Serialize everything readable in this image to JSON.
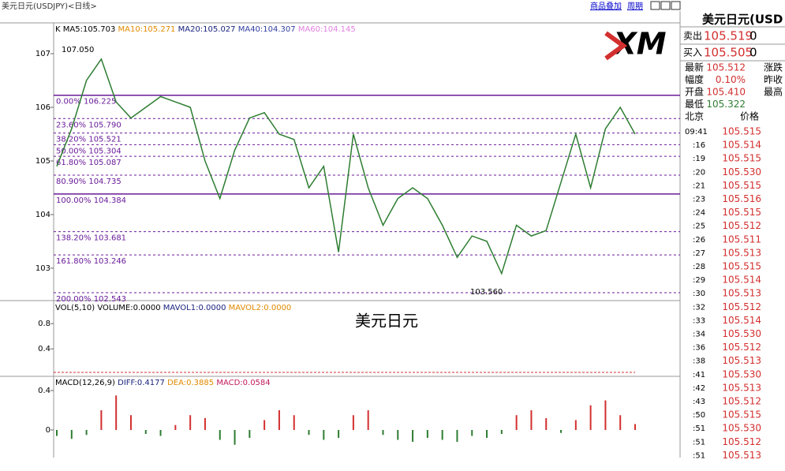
{
  "header": {
    "title": "美元日元(USDJPY)<日线>",
    "links": [
      "商品叠加",
      "周期"
    ]
  },
  "price_chart": {
    "indicator": "K",
    "ma_labels": [
      {
        "text": "MA5:105.703",
        "color": "#000000"
      },
      {
        "text": "MA10:105.271",
        "color": "#e08a00"
      },
      {
        "text": "MA20:105.027",
        "color": "#1a237e"
      },
      {
        "text": "MA40:104.307",
        "color": "#303f9f"
      },
      {
        "text": "MA60:104.145",
        "color": "#e080e0"
      }
    ],
    "ylim": [
      102.41,
      107.56
    ],
    "yticks": [
      103,
      104,
      105,
      106,
      107
    ],
    "high_label": "107.050",
    "low_label": "103.560",
    "fib_levels": [
      {
        "ratio": "0.00%",
        "price": 106.225
      },
      {
        "ratio": "23.60%",
        "price": {
          "value": 105.79,
          "label": "105.790"
        }
      },
      {
        "ratio": "38.20%",
        "price": 105.521
      },
      {
        "ratio": "50.00%",
        "price": 105.304
      },
      {
        "ratio": "61.80%",
        "price": 105.087
      },
      {
        "ratio": "80.90%",
        "price": 104.735
      },
      {
        "ratio": "100.00%",
        "price": 104.384
      },
      {
        "ratio": "138.20%",
        "price": 103.681
      },
      {
        "ratio": "161.80%",
        "price": 103.246
      },
      {
        "ratio": "200.00%",
        "price": 102.543
      }
    ],
    "closes": [
      104.9,
      105.6,
      106.5,
      106.9,
      106.1,
      105.8,
      106.0,
      106.2,
      106.1,
      106.0,
      105.0,
      104.3,
      105.2,
      105.8,
      105.9,
      105.5,
      105.4,
      104.5,
      104.9,
      103.3,
      105.5,
      104.5,
      103.8,
      104.3,
      104.5,
      104.3,
      103.8,
      103.2,
      103.6,
      103.5,
      102.9,
      103.8,
      103.6,
      103.7,
      104.6,
      105.5,
      104.5,
      105.6,
      106.0,
      105.5
    ],
    "close_color": "#2e7d32"
  },
  "watermark": "美元日元",
  "volume_chart": {
    "label": "VOL(5,10) VOLUME:0.0000",
    "mavol1": "MAVOL1:0.0000",
    "mavol2": "MAVOL2:0.0000",
    "ylim": [
      -0.01,
      1.14
    ],
    "yticks": [
      0.4,
      0.8
    ]
  },
  "macd_chart": {
    "label": "MACD(12,26,9)",
    "diff": "DIFF:0.4177",
    "dea": "DEA:0.3885",
    "macd": "MACD:0.0584",
    "ylim": [
      -0.28,
      0.536
    ],
    "yticks": [
      0,
      0.4
    ],
    "histogram": [
      -0.06,
      -0.09,
      -0.05,
      0.2,
      0.35,
      0.15,
      -0.04,
      -0.06,
      0.05,
      0.15,
      0.12,
      -0.1,
      -0.15,
      -0.08,
      0.1,
      0.2,
      0.15,
      -0.05,
      -0.1,
      -0.08,
      0.15,
      0.2,
      -0.05,
      -0.1,
      -0.12,
      -0.08,
      -0.1,
      -0.12,
      -0.06,
      -0.08,
      -0.04,
      0.15,
      0.2,
      0.12,
      -0.03,
      0.1,
      0.25,
      0.3,
      0.15,
      0.06
    ]
  },
  "quote_panel": {
    "title": "美元日元(USD",
    "sell": {
      "label": "卖出",
      "price": "105.519",
      "change": "0"
    },
    "buy": {
      "label": "买入",
      "price": "105.505",
      "change": "0"
    },
    "stats": [
      [
        "最新",
        "105.512",
        "涨跌"
      ],
      [
        "幅度",
        "0.10%",
        "昨收"
      ],
      [
        "开盘",
        "105.410",
        "最高"
      ],
      [
        "最低",
        "105.322"
      ]
    ],
    "ticks_header": [
      "北京",
      "价格"
    ],
    "ticks": [
      [
        "09:41",
        "105.515"
      ],
      [
        ":16",
        "105.514"
      ],
      [
        ":19",
        "105.515"
      ],
      [
        ":20",
        "105.530"
      ],
      [
        ":21",
        "105.515"
      ],
      [
        ":23",
        "105.516"
      ],
      [
        ":24",
        "105.515"
      ],
      [
        ":25",
        "105.512"
      ],
      [
        ":26",
        "105.511"
      ],
      [
        ":27",
        "105.513"
      ],
      [
        ":28",
        "105.515"
      ],
      [
        ":29",
        "105.514"
      ],
      [
        ":30",
        "105.513"
      ],
      [
        ":32",
        "105.512"
      ],
      [
        ":33",
        "105.514"
      ],
      [
        ":34",
        "105.530"
      ],
      [
        ":36",
        "105.512"
      ],
      [
        ":38",
        "105.513"
      ],
      [
        ":41",
        "105.530"
      ],
      [
        ":42",
        "105.513"
      ],
      [
        ":43",
        "105.512"
      ],
      [
        ":50",
        "105.515"
      ],
      [
        ":51",
        "105.530"
      ],
      [
        ":51",
        "105.512"
      ],
      [
        ":51",
        "105.513"
      ]
    ]
  }
}
